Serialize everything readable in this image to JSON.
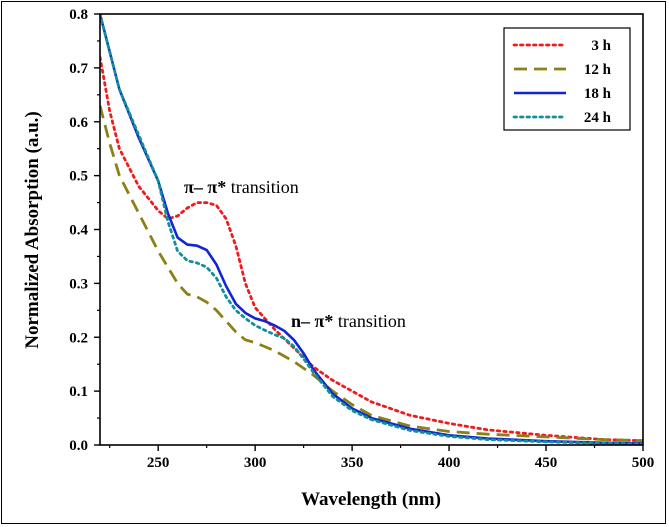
{
  "chart_data": {
    "type": "line",
    "title": "",
    "xlabel": "Wavelength (nm)",
    "ylabel": "Normalized Absorption (a.u.)",
    "xlim": [
      220,
      500
    ],
    "ylim": [
      0.0,
      0.8
    ],
    "xticks": [
      250,
      300,
      350,
      400,
      450,
      500
    ],
    "yticks": [
      0.0,
      0.1,
      0.2,
      0.3,
      0.4,
      0.5,
      0.6,
      0.7,
      0.8
    ],
    "xtick_labels": [
      "250",
      "300",
      "350",
      "400",
      "450",
      "500"
    ],
    "ytick_labels": [
      "0.0",
      "0.1",
      "0.2",
      "0.3",
      "0.4",
      "0.5",
      "0.6",
      "0.7",
      "0.8"
    ],
    "legend_position": "top-right",
    "grid": false,
    "series": [
      {
        "name": "3 h",
        "color": "#ee1c1c",
        "style": "dotted",
        "x": [
          220,
          225,
          230,
          240,
          250,
          255,
          260,
          265,
          270,
          275,
          280,
          285,
          290,
          295,
          300,
          310,
          320,
          330,
          340,
          350,
          360,
          380,
          400,
          420,
          450,
          480,
          500
        ],
        "y": [
          0.72,
          0.62,
          0.55,
          0.48,
          0.435,
          0.42,
          0.425,
          0.44,
          0.45,
          0.45,
          0.445,
          0.42,
          0.37,
          0.3,
          0.255,
          0.215,
          0.18,
          0.145,
          0.12,
          0.1,
          0.08,
          0.055,
          0.04,
          0.028,
          0.018,
          0.01,
          0.008
        ]
      },
      {
        "name": "12 h",
        "color": "#8b8117",
        "style": "dashed",
        "x": [
          220,
          225,
          230,
          240,
          250,
          260,
          265,
          270,
          275,
          280,
          290,
          295,
          300,
          310,
          320,
          330,
          340,
          350,
          360,
          380,
          400,
          420,
          450,
          480,
          500
        ],
        "y": [
          0.63,
          0.56,
          0.5,
          0.43,
          0.36,
          0.3,
          0.28,
          0.275,
          0.265,
          0.25,
          0.21,
          0.195,
          0.19,
          0.175,
          0.155,
          0.13,
          0.1,
          0.075,
          0.055,
          0.035,
          0.025,
          0.02,
          0.015,
          0.01,
          0.008
        ]
      },
      {
        "name": "18 h",
        "color": "#1026d6",
        "style": "solid",
        "x": [
          220,
          225,
          230,
          240,
          250,
          255,
          260,
          265,
          270,
          275,
          280,
          285,
          290,
          295,
          300,
          305,
          310,
          315,
          320,
          325,
          330,
          340,
          350,
          360,
          380,
          400,
          420,
          450,
          480,
          500
        ],
        "y": [
          0.8,
          0.73,
          0.66,
          0.57,
          0.49,
          0.43,
          0.385,
          0.372,
          0.37,
          0.362,
          0.335,
          0.295,
          0.262,
          0.245,
          0.235,
          0.23,
          0.222,
          0.212,
          0.195,
          0.17,
          0.14,
          0.095,
          0.068,
          0.05,
          0.03,
          0.018,
          0.012,
          0.007,
          0.004,
          0.003
        ]
      },
      {
        "name": "24 h",
        "color": "#138f9b",
        "style": "dotted",
        "x": [
          220,
          225,
          230,
          240,
          250,
          255,
          260,
          265,
          270,
          275,
          280,
          285,
          290,
          295,
          300,
          305,
          310,
          315,
          320,
          325,
          330,
          340,
          350,
          360,
          380,
          400,
          420,
          450,
          480,
          500
        ],
        "y": [
          0.8,
          0.73,
          0.66,
          0.575,
          0.49,
          0.415,
          0.36,
          0.342,
          0.338,
          0.33,
          0.31,
          0.275,
          0.25,
          0.235,
          0.222,
          0.213,
          0.205,
          0.198,
          0.183,
          0.16,
          0.135,
          0.09,
          0.064,
          0.047,
          0.027,
          0.016,
          0.01,
          0.006,
          0.003,
          0.002
        ]
      }
    ],
    "annotations": [
      {
        "symbol": "π– π*",
        "text": " transition",
        "at_x": 280,
        "at_y": 0.46
      },
      {
        "symbol": "n– π*",
        "text": " transition",
        "at_x": 338,
        "at_y": 0.225
      }
    ]
  }
}
